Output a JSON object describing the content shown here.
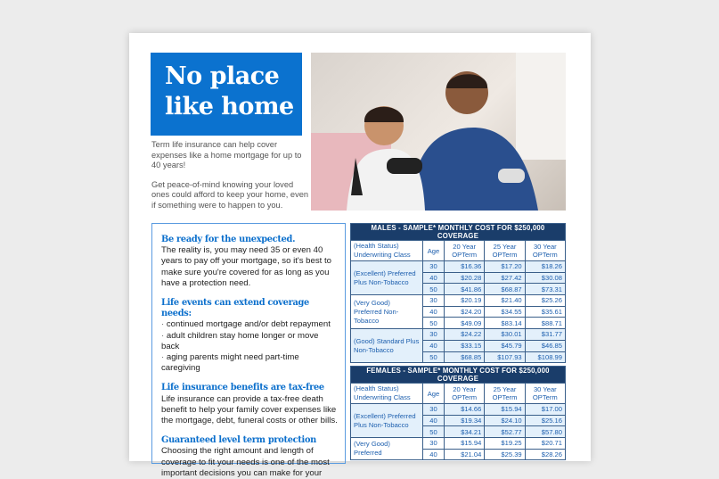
{
  "title": "No place like home",
  "intro": [
    "Term life insurance can help cover expenses like a home mortgage for up to 40 years!",
    "Get peace-of-mind knowing your loved ones could afford to keep your home, even if something were to happen to you."
  ],
  "sections": [
    {
      "heading": "Be ready for the unexpected.",
      "body": "The reality is, you may need 35 or even 40 years to pay off your mortgage, so it's best to make sure you're covered for as long as you have a protection need."
    },
    {
      "heading": "Life events can extend coverage needs:",
      "bullets": [
        "continued mortgage and/or debt repayment",
        "adult children stay home longer or move back",
        "aging parents might need part-time caregiving"
      ]
    },
    {
      "heading": "Life insurance benefits are tax-free",
      "body": "Life insurance can provide a tax-free death benefit to help your family cover expenses like the mortgage, debt, funeral costs or other bills."
    },
    {
      "heading": "Guaranteed level term protection",
      "body": "Choosing the right amount and length of coverage to fit your needs is one of the most important decisions you can make for your"
    }
  ],
  "columns": [
    "(Health Status) Underwriting Class",
    "Age",
    "20 Year OPTerm",
    "25 Year OPTerm",
    "30 Year OPTerm"
  ],
  "males": {
    "caption": "MALES - SAMPLE* MONTHLY COST FOR $250,000 COVERAGE",
    "groups": [
      {
        "cls": "(Excellent) Preferred Plus Non-Tobacco",
        "rows": [
          [
            "30",
            "$16.36",
            "$17.20",
            "$18.26"
          ],
          [
            "40",
            "$20.28",
            "$27.42",
            "$30.08"
          ],
          [
            "50",
            "$41.86",
            "$68.87",
            "$73.31"
          ]
        ]
      },
      {
        "cls": "(Very Good) Preferred Non-Tobacco",
        "rows": [
          [
            "30",
            "$20.19",
            "$21.40",
            "$25.26"
          ],
          [
            "40",
            "$24.20",
            "$34.55",
            "$35.61"
          ],
          [
            "50",
            "$49.09",
            "$83.14",
            "$88.71"
          ]
        ]
      },
      {
        "cls": "(Good) Standard Plus Non-Tobacco",
        "rows": [
          [
            "30",
            "$24.22",
            "$30.01",
            "$31.77"
          ],
          [
            "40",
            "$33.15",
            "$45.79",
            "$46.85"
          ],
          [
            "50",
            "$68.85",
            "$107.93",
            "$108.99"
          ]
        ]
      }
    ]
  },
  "females": {
    "caption": "FEMALES - SAMPLE* MONTHLY COST FOR $250,000 COVERAGE",
    "groups": [
      {
        "cls": "(Excellent) Preferred Plus Non-Tobacco",
        "rows": [
          [
            "30",
            "$14.66",
            "$15.94",
            "$17.00"
          ],
          [
            "40",
            "$19.34",
            "$24.10",
            "$25.16"
          ],
          [
            "50",
            "$34.21",
            "$52.77",
            "$57.80"
          ]
        ]
      },
      {
        "cls": "(Very Good) Preferred",
        "rows": [
          [
            "30",
            "$15.94",
            "$19.25",
            "$20.71"
          ],
          [
            "40",
            "$21.04",
            "$25.39",
            "$28.26"
          ]
        ]
      }
    ]
  },
  "colors": {
    "brand_blue": "#0b72cf",
    "table_header": "#1a3d6a",
    "row_tint": "#e3f0fb"
  }
}
